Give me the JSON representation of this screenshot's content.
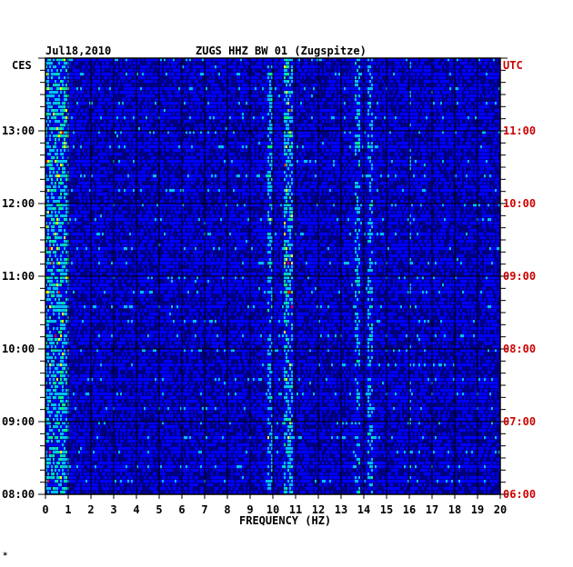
{
  "header": {
    "date": "Jul18,2010",
    "title": "ZUGS HHZ BW 01 (Zugspitze)",
    "left_tz": "CES",
    "right_tz": "UTC"
  },
  "footer": {
    "mark": "*"
  },
  "colors": {
    "background": "#000080",
    "grid": "#000000",
    "left_axis_text": "#000000",
    "right_axis_text": "#cc0000"
  },
  "chart_data": {
    "type": "heatmap",
    "title": "ZUGS HHZ BW 01 (Zugspitze)",
    "xlabel": "FREQUENCY (HZ)",
    "ylabel": "",
    "xlim": [
      0,
      20
    ],
    "x_ticks": [
      "0",
      "1",
      "2",
      "3",
      "4",
      "5",
      "6",
      "7",
      "8",
      "9",
      "10",
      "11",
      "12",
      "13",
      "14",
      "15",
      "16",
      "17",
      "18",
      "19",
      "20"
    ],
    "y_time_range_ces": [
      "08:00",
      "14:00"
    ],
    "y_left_ticks_ces": [
      "08:00",
      "09:00",
      "10:00",
      "11:00",
      "12:00",
      "13:00"
    ],
    "y_right_ticks_utc": [
      "06:00",
      "07:00",
      "08:00",
      "09:00",
      "10:00",
      "11:00"
    ],
    "colormap": [
      "#000080",
      "#0000ff",
      "#00c0ff",
      "#00ff80",
      "#ffff00",
      "#ff0000"
    ],
    "energy_bands_hz": [
      {
        "x": [
          0.0,
          1.0
        ],
        "level": "high"
      },
      {
        "x": [
          9.8,
          10.0
        ],
        "level": "medium"
      },
      {
        "x": [
          10.5,
          10.9
        ],
        "level": "high"
      },
      {
        "x": [
          13.6,
          13.8
        ],
        "level": "medium"
      },
      {
        "x": [
          14.2,
          14.4
        ],
        "level": "medium"
      },
      {
        "x": [
          16.0,
          16.05
        ],
        "level": "low"
      }
    ]
  }
}
